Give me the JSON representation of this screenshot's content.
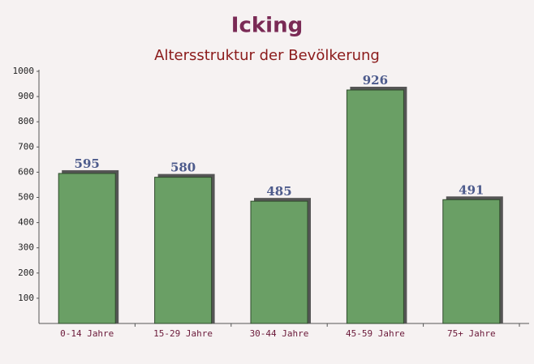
{
  "chart_data": {
    "type": "bar",
    "title": "Icking",
    "subtitle": "Altersstruktur der Bevölkerung",
    "categories": [
      "0-14 Jahre",
      "15-29 Jahre",
      "30-44 Jahre",
      "45-59 Jahre",
      "75+ Jahre"
    ],
    "values": [
      595,
      580,
      485,
      926,
      491
    ],
    "color": "#6a9f65",
    "ylim": [
      0,
      1000
    ],
    "yticks": [
      100,
      200,
      300,
      400,
      500,
      600,
      700,
      800,
      900,
      1000
    ],
    "grid": false
  }
}
